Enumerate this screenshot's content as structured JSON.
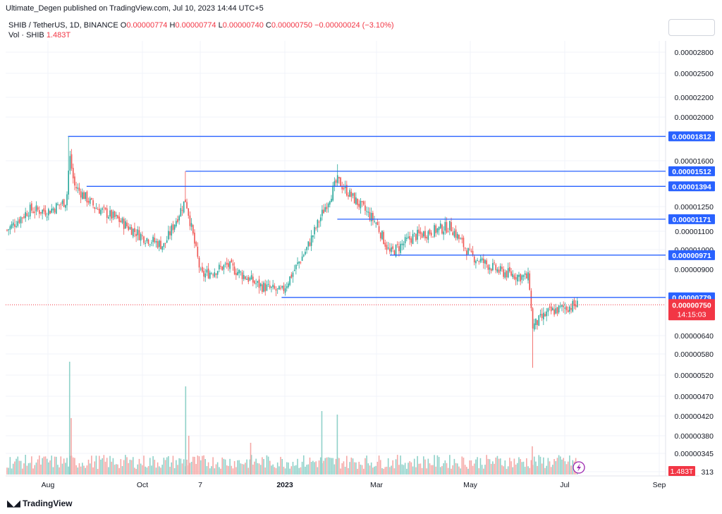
{
  "header": {
    "publish_line": "Ultimate_Degen published on TradingView.com, Jul 10, 2023 14:44 UTC+5"
  },
  "legend": {
    "symbol": "SHIB / TetherUS, 1D, BINANCE",
    "ohlc": [
      {
        "k": "O",
        "v": "0.00000774"
      },
      {
        "k": "H",
        "v": "0.00000774"
      },
      {
        "k": "L",
        "v": "0.00000740"
      },
      {
        "k": "C",
        "v": "0.00000750"
      }
    ],
    "change": "−0.00000024 (−3.10%)",
    "vol_label": "Vol · SHIB",
    "vol_value": "1.483T"
  },
  "brand": {
    "logo": "⁠17",
    "name": "TradingView"
  },
  "colors": {
    "up": "#26a69a",
    "down": "#ef5350",
    "line": "#2962ff",
    "price_label": "#f23645"
  },
  "chart_data": {
    "type": "candlestick",
    "symbol": "SHIB/USDT",
    "interval": "1D",
    "exchange": "BINANCE",
    "y_axis_ticks": [
      "0.00002800",
      "0.00002500",
      "0.00002200",
      "0.00002000",
      "0.00001600",
      "0.00001250",
      "0.00001100",
      "0.00001000",
      "0.00000900",
      "0.00000640",
      "0.00000580",
      "0.00000520",
      "0.00000470",
      "0.00000420",
      "0.00000380",
      "0.00000345",
      "313"
    ],
    "x_axis_ticks": [
      "Aug",
      "Oct",
      "7",
      "2023",
      "Mar",
      "May",
      "Jul",
      "Sep"
    ],
    "scale": "log",
    "horizontal_levels": [
      {
        "price": 1.812e-05,
        "label": "0.00001812",
        "from": "2022-08-14"
      },
      {
        "price": 1.512e-05,
        "label": "0.00001512",
        "from": "2022-10-29"
      },
      {
        "price": 1.394e-05,
        "label": "0.00001394",
        "from": "2022-08-26"
      },
      {
        "price": 1.171e-05,
        "label": "0.00001171",
        "from": "2023-02-04"
      },
      {
        "price": 9.71e-06,
        "label": "0.00000971",
        "from": "2023-03-10"
      },
      {
        "price": 7.79e-06,
        "label": "0.00000779",
        "from": "2022-12-30"
      }
    ],
    "current_price": {
      "label": "0.00000750",
      "countdown": "14:15:03"
    },
    "volume_label": "1.483T",
    "close_path": [
      {
        "date": "2022-07-01",
        "close": 1.07e-05
      },
      {
        "date": "2022-07-20",
        "close": 1.23e-05
      },
      {
        "date": "2022-08-01",
        "close": 1.22e-05
      },
      {
        "date": "2022-08-13",
        "close": 1.29e-05
      },
      {
        "date": "2022-08-15",
        "close": 1.65e-05
      },
      {
        "date": "2022-08-18",
        "close": 1.4e-05
      },
      {
        "date": "2022-08-31",
        "close": 1.25e-05
      },
      {
        "date": "2022-09-15",
        "close": 1.17e-05
      },
      {
        "date": "2022-10-01",
        "close": 1.07e-05
      },
      {
        "date": "2022-10-15",
        "close": 1.02e-05
      },
      {
        "date": "2022-10-29",
        "close": 1.3e-05
      },
      {
        "date": "2022-11-08",
        "close": 8.7e-06
      },
      {
        "date": "2022-11-25",
        "close": 9.2e-06
      },
      {
        "date": "2022-12-15",
        "close": 8.3e-06
      },
      {
        "date": "2022-12-30",
        "close": 8e-06
      },
      {
        "date": "2023-01-15",
        "close": 1e-05
      },
      {
        "date": "2023-02-04",
        "close": 1.44e-05
      },
      {
        "date": "2023-02-15",
        "close": 1.3e-05
      },
      {
        "date": "2023-03-01",
        "close": 1.15e-05
      },
      {
        "date": "2023-03-10",
        "close": 9.8e-06
      },
      {
        "date": "2023-03-25",
        "close": 1.07e-05
      },
      {
        "date": "2023-04-18",
        "close": 1.13e-05
      },
      {
        "date": "2023-05-01",
        "close": 9.7e-06
      },
      {
        "date": "2023-05-20",
        "close": 8.9e-06
      },
      {
        "date": "2023-06-08",
        "close": 8.6e-06
      },
      {
        "date": "2023-06-10",
        "close": 6.7e-06
      },
      {
        "date": "2023-06-20",
        "close": 7.2e-06
      },
      {
        "date": "2023-07-01",
        "close": 7.4e-06
      },
      {
        "date": "2023-07-10",
        "close": 7.5e-06
      }
    ]
  }
}
